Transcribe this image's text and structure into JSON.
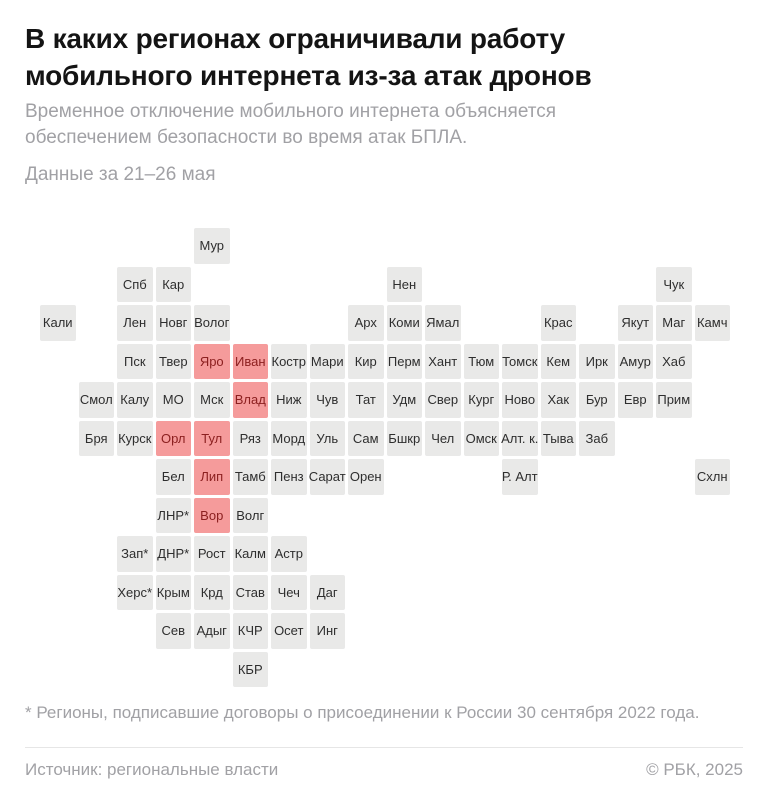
{
  "header": {
    "title_line1": "В каких регионах ограничивали работу",
    "title_line2": "мобильного интернета из-за атак дронов",
    "subtitle": "Временное отключение мобильного интернета объясняется обеспечением безопасности во время атак БПЛА.",
    "date_note": "Данные за 21–26 мая"
  },
  "map": {
    "grid": {
      "pitch": 38.5,
      "tile_size": 35.5
    },
    "colors": {
      "tile_bg": "#e9e9e8",
      "tile_text": "#2e2e2e",
      "highlight_bg": "#f59b9b",
      "highlight_text": "#8c2020"
    },
    "legend_meaning": "Красным выделены регионы, где ограничивали мобильный интернет",
    "highlighted_regions": [
      "Яро",
      "Иван",
      "Влад",
      "Орл",
      "Тул",
      "Лип",
      "Вор"
    ],
    "tiles": [
      {
        "label": "Мур",
        "col": 4,
        "row": 0,
        "highlighted": false
      },
      {
        "label": "Спб",
        "col": 2,
        "row": 1,
        "highlighted": false
      },
      {
        "label": "Кар",
        "col": 3,
        "row": 1,
        "highlighted": false
      },
      {
        "label": "Нен",
        "col": 9,
        "row": 1,
        "highlighted": false
      },
      {
        "label": "Чук",
        "col": 16,
        "row": 1,
        "highlighted": false
      },
      {
        "label": "Кали",
        "col": 0,
        "row": 2,
        "highlighted": false
      },
      {
        "label": "Лен",
        "col": 2,
        "row": 2,
        "highlighted": false
      },
      {
        "label": "Новг",
        "col": 3,
        "row": 2,
        "highlighted": false
      },
      {
        "label": "Волог",
        "col": 4,
        "row": 2,
        "highlighted": false
      },
      {
        "label": "Арх",
        "col": 8,
        "row": 2,
        "highlighted": false
      },
      {
        "label": "Коми",
        "col": 9,
        "row": 2,
        "highlighted": false
      },
      {
        "label": "Ямал",
        "col": 10,
        "row": 2,
        "highlighted": false
      },
      {
        "label": "Крас",
        "col": 13,
        "row": 2,
        "highlighted": false
      },
      {
        "label": "Якут",
        "col": 15,
        "row": 2,
        "highlighted": false
      },
      {
        "label": "Маг",
        "col": 16,
        "row": 2,
        "highlighted": false
      },
      {
        "label": "Камч",
        "col": 17,
        "row": 2,
        "highlighted": false
      },
      {
        "label": "Пск",
        "col": 2,
        "row": 3,
        "highlighted": false
      },
      {
        "label": "Твер",
        "col": 3,
        "row": 3,
        "highlighted": false
      },
      {
        "label": "Яро",
        "col": 4,
        "row": 3,
        "highlighted": true
      },
      {
        "label": "Иван",
        "col": 5,
        "row": 3,
        "highlighted": true
      },
      {
        "label": "Костр",
        "col": 6,
        "row": 3,
        "highlighted": false
      },
      {
        "label": "Мари",
        "col": 7,
        "row": 3,
        "highlighted": false
      },
      {
        "label": "Кир",
        "col": 8,
        "row": 3,
        "highlighted": false
      },
      {
        "label": "Перм",
        "col": 9,
        "row": 3,
        "highlighted": false
      },
      {
        "label": "Хант",
        "col": 10,
        "row": 3,
        "highlighted": false
      },
      {
        "label": "Тюм",
        "col": 11,
        "row": 3,
        "highlighted": false
      },
      {
        "label": "Томск",
        "col": 12,
        "row": 3,
        "highlighted": false
      },
      {
        "label": "Кем",
        "col": 13,
        "row": 3,
        "highlighted": false
      },
      {
        "label": "Ирк",
        "col": 14,
        "row": 3,
        "highlighted": false
      },
      {
        "label": "Амур",
        "col": 15,
        "row": 3,
        "highlighted": false
      },
      {
        "label": "Хаб",
        "col": 16,
        "row": 3,
        "highlighted": false
      },
      {
        "label": "Смол",
        "col": 1,
        "row": 4,
        "highlighted": false
      },
      {
        "label": "Калу",
        "col": 2,
        "row": 4,
        "highlighted": false
      },
      {
        "label": "МО",
        "col": 3,
        "row": 4,
        "highlighted": false
      },
      {
        "label": "Мск",
        "col": 4,
        "row": 4,
        "highlighted": false
      },
      {
        "label": "Влад",
        "col": 5,
        "row": 4,
        "highlighted": true
      },
      {
        "label": "Ниж",
        "col": 6,
        "row": 4,
        "highlighted": false
      },
      {
        "label": "Чув",
        "col": 7,
        "row": 4,
        "highlighted": false
      },
      {
        "label": "Тат",
        "col": 8,
        "row": 4,
        "highlighted": false
      },
      {
        "label": "Удм",
        "col": 9,
        "row": 4,
        "highlighted": false
      },
      {
        "label": "Свер",
        "col": 10,
        "row": 4,
        "highlighted": false
      },
      {
        "label": "Кург",
        "col": 11,
        "row": 4,
        "highlighted": false
      },
      {
        "label": "Ново",
        "col": 12,
        "row": 4,
        "highlighted": false
      },
      {
        "label": "Хак",
        "col": 13,
        "row": 4,
        "highlighted": false
      },
      {
        "label": "Бур",
        "col": 14,
        "row": 4,
        "highlighted": false
      },
      {
        "label": "Евр",
        "col": 15,
        "row": 4,
        "highlighted": false
      },
      {
        "label": "Прим",
        "col": 16,
        "row": 4,
        "highlighted": false
      },
      {
        "label": "Бря",
        "col": 1,
        "row": 5,
        "highlighted": false
      },
      {
        "label": "Курск",
        "col": 2,
        "row": 5,
        "highlighted": false
      },
      {
        "label": "Орл",
        "col": 3,
        "row": 5,
        "highlighted": true
      },
      {
        "label": "Тул",
        "col": 4,
        "row": 5,
        "highlighted": true
      },
      {
        "label": "Ряз",
        "col": 5,
        "row": 5,
        "highlighted": false
      },
      {
        "label": "Морд",
        "col": 6,
        "row": 5,
        "highlighted": false
      },
      {
        "label": "Уль",
        "col": 7,
        "row": 5,
        "highlighted": false
      },
      {
        "label": "Сам",
        "col": 8,
        "row": 5,
        "highlighted": false
      },
      {
        "label": "Бшкр",
        "col": 9,
        "row": 5,
        "highlighted": false
      },
      {
        "label": "Чел",
        "col": 10,
        "row": 5,
        "highlighted": false
      },
      {
        "label": "Омск",
        "col": 11,
        "row": 5,
        "highlighted": false
      },
      {
        "label": "Алт. к.",
        "col": 12,
        "row": 5,
        "highlighted": false
      },
      {
        "label": "Тыва",
        "col": 13,
        "row": 5,
        "highlighted": false
      },
      {
        "label": "Заб",
        "col": 14,
        "row": 5,
        "highlighted": false
      },
      {
        "label": "Бел",
        "col": 3,
        "row": 6,
        "highlighted": false
      },
      {
        "label": "Лип",
        "col": 4,
        "row": 6,
        "highlighted": true
      },
      {
        "label": "Тамб",
        "col": 5,
        "row": 6,
        "highlighted": false
      },
      {
        "label": "Пенз",
        "col": 6,
        "row": 6,
        "highlighted": false
      },
      {
        "label": "Сарат",
        "col": 7,
        "row": 6,
        "highlighted": false
      },
      {
        "label": "Орен",
        "col": 8,
        "row": 6,
        "highlighted": false
      },
      {
        "label": "Р. Алт",
        "col": 12,
        "row": 6,
        "highlighted": false
      },
      {
        "label": "Схлн",
        "col": 17,
        "row": 6,
        "highlighted": false
      },
      {
        "label": "ЛНР*",
        "col": 3,
        "row": 7,
        "highlighted": false
      },
      {
        "label": "Вор",
        "col": 4,
        "row": 7,
        "highlighted": true
      },
      {
        "label": "Волг",
        "col": 5,
        "row": 7,
        "highlighted": false
      },
      {
        "label": "Зап*",
        "col": 2,
        "row": 8,
        "highlighted": false
      },
      {
        "label": "ДНР*",
        "col": 3,
        "row": 8,
        "highlighted": false
      },
      {
        "label": "Рост",
        "col": 4,
        "row": 8,
        "highlighted": false
      },
      {
        "label": "Калм",
        "col": 5,
        "row": 8,
        "highlighted": false
      },
      {
        "label": "Астр",
        "col": 6,
        "row": 8,
        "highlighted": false
      },
      {
        "label": "Херс*",
        "col": 2,
        "row": 9,
        "highlighted": false
      },
      {
        "label": "Крым",
        "col": 3,
        "row": 9,
        "highlighted": false
      },
      {
        "label": "Крд",
        "col": 4,
        "row": 9,
        "highlighted": false
      },
      {
        "label": "Став",
        "col": 5,
        "row": 9,
        "highlighted": false
      },
      {
        "label": "Чеч",
        "col": 6,
        "row": 9,
        "highlighted": false
      },
      {
        "label": "Даг",
        "col": 7,
        "row": 9,
        "highlighted": false
      },
      {
        "label": "Сев",
        "col": 3,
        "row": 10,
        "highlighted": false
      },
      {
        "label": "Адыг",
        "col": 4,
        "row": 10,
        "highlighted": false
      },
      {
        "label": "КЧР",
        "col": 5,
        "row": 10,
        "highlighted": false
      },
      {
        "label": "Осет",
        "col": 6,
        "row": 10,
        "highlighted": false
      },
      {
        "label": "Инг",
        "col": 7,
        "row": 10,
        "highlighted": false
      },
      {
        "label": "КБР",
        "col": 5,
        "row": 11,
        "highlighted": false
      }
    ]
  },
  "footnote": "* Регионы, подписавшие договоры о присоединении к России 30 сентября 2022 года.",
  "footer": {
    "source": "Источник: региональные власти",
    "copyright": "© РБК, 2025"
  }
}
